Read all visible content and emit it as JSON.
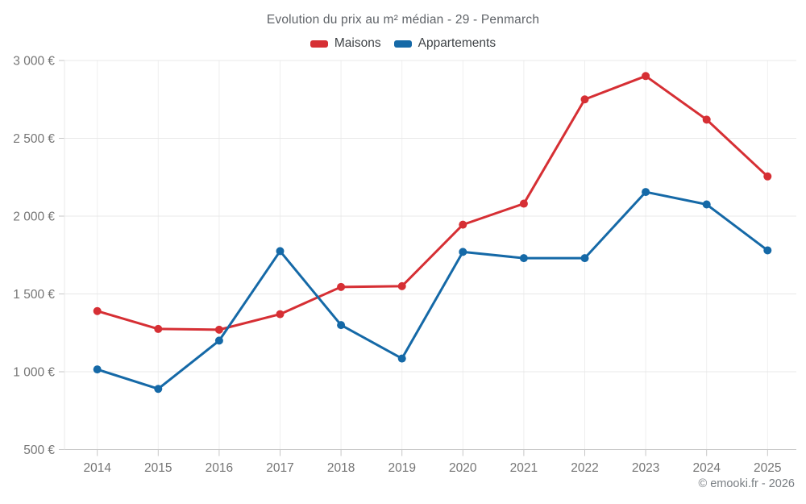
{
  "title": "Evolution du prix au m² médian - 29 - Penmarch",
  "legend": [
    {
      "label": "Maisons",
      "color": "#d62f34"
    },
    {
      "label": "Appartements",
      "color": "#1569a7"
    }
  ],
  "footer": "© emooki.fr - 2026",
  "colors": {
    "maisons": "#d62f34",
    "appartements": "#1569a7",
    "grid": "#e8e8e8",
    "grid_vertical": "#eeeeee",
    "axis_baseline": "#c6c6c6",
    "tick": "#c6c6c6",
    "axis_text": "#757575"
  },
  "chart_data": {
    "type": "line",
    "title": "Evolution du prix au m² médian - 29 - Penmarch",
    "categories": [
      "2014",
      "2015",
      "2016",
      "2017",
      "2018",
      "2019",
      "2020",
      "2021",
      "2022",
      "2023",
      "2024",
      "2025"
    ],
    "series": [
      {
        "name": "Maisons",
        "color": "#d62f34",
        "values": [
          1390,
          1275,
          1270,
          1370,
          1545,
          1550,
          1945,
          2080,
          2750,
          2900,
          2620,
          2255
        ]
      },
      {
        "name": "Appartements",
        "color": "#1569a7",
        "values": [
          1015,
          890,
          1200,
          1775,
          1300,
          1085,
          1770,
          1730,
          1730,
          2155,
          2075,
          1780
        ]
      }
    ],
    "xlabel": "",
    "ylabel": "",
    "ylim": [
      500,
      3000
    ],
    "yticks": [
      500,
      1000,
      1500,
      2000,
      2500,
      3000
    ],
    "ytick_suffix": " €",
    "grid": true,
    "legend_position": "top"
  }
}
